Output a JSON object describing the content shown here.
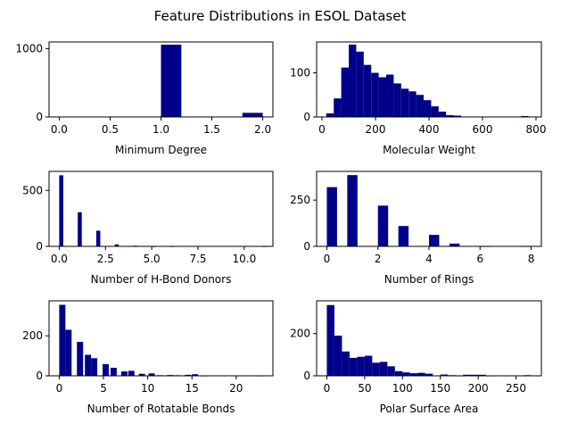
{
  "figure": {
    "title": "Feature Distributions in ESOL Dataset"
  },
  "colors": {
    "bar": "#00008b",
    "axis": "#000000"
  },
  "chart_data": [
    {
      "type": "bar",
      "subtype": "histogram",
      "xlabel": "Minimum Degree",
      "xlim": [
        -0.1,
        2.1
      ],
      "ylim": [
        0,
        1100
      ],
      "xticks": [
        0.0,
        0.5,
        1.0,
        1.5,
        2.0
      ],
      "xticklabels": [
        "0.0",
        "0.5",
        "1.0",
        "1.5",
        "2.0"
      ],
      "yticks": [
        0,
        1000
      ],
      "yticklabels": [
        "0",
        "1000"
      ],
      "bins": [
        [
          1.0,
          1.2,
          1060
        ],
        [
          1.8,
          2.0,
          60
        ]
      ]
    },
    {
      "type": "bar",
      "subtype": "histogram",
      "xlabel": "Molecular Weight",
      "xlim": [
        -20,
        820
      ],
      "ylim": [
        0,
        170
      ],
      "xticks": [
        0,
        200,
        400,
        600,
        800
      ],
      "xticklabels": [
        "0",
        "200",
        "400",
        "600",
        "800"
      ],
      "yticks": [
        0,
        100
      ],
      "yticklabels": [
        "0",
        "100"
      ],
      "bins": [
        [
          16,
          44,
          8
        ],
        [
          44,
          72,
          42
        ],
        [
          72,
          100,
          112
        ],
        [
          100,
          128,
          164
        ],
        [
          128,
          156,
          148
        ],
        [
          156,
          184,
          118
        ],
        [
          184,
          212,
          100
        ],
        [
          212,
          240,
          90
        ],
        [
          240,
          268,
          96
        ],
        [
          268,
          296,
          76
        ],
        [
          296,
          324,
          64
        ],
        [
          324,
          352,
          58
        ],
        [
          352,
          380,
          50
        ],
        [
          380,
          408,
          38
        ],
        [
          408,
          436,
          24
        ],
        [
          436,
          464,
          12
        ],
        [
          464,
          492,
          4
        ],
        [
          492,
          520,
          3
        ],
        [
          520,
          548,
          1
        ],
        [
          548,
          576,
          1
        ],
        [
          576,
          604,
          0
        ],
        [
          604,
          632,
          0
        ],
        [
          632,
          660,
          0
        ],
        [
          660,
          688,
          0
        ],
        [
          688,
          716,
          0
        ],
        [
          716,
          744,
          0
        ],
        [
          744,
          772,
          2
        ],
        [
          772,
          800,
          1
        ]
      ]
    },
    {
      "type": "bar",
      "subtype": "histogram",
      "xlabel": "Number of H-Bond Donors",
      "xlim": [
        -0.55,
        11.55
      ],
      "ylim": [
        0,
        670
      ],
      "xticks": [
        0.0,
        2.5,
        5.0,
        7.5,
        10.0
      ],
      "xticklabels": [
        "0.0",
        "2.5",
        "5.0",
        "7.5",
        "10.0"
      ],
      "yticks": [
        0,
        500
      ],
      "yticklabels": [
        "0",
        "500"
      ],
      "bins": [
        [
          0.0,
          0.22,
          635
        ],
        [
          1.0,
          1.22,
          305
        ],
        [
          2.0,
          2.22,
          140
        ],
        [
          3.0,
          3.22,
          18
        ],
        [
          4.0,
          4.22,
          6
        ],
        [
          5.0,
          5.22,
          1
        ],
        [
          6.0,
          6.22,
          1
        ],
        [
          11.0,
          11.22,
          1
        ]
      ]
    },
    {
      "type": "bar",
      "subtype": "histogram",
      "xlabel": "Number of Rings",
      "xlim": [
        -0.4,
        8.4
      ],
      "ylim": [
        0,
        405
      ],
      "xticks": [
        0,
        2,
        4,
        6,
        8
      ],
      "xticklabels": [
        "0",
        "2",
        "4",
        "6",
        "8"
      ],
      "yticks": [
        0,
        250
      ],
      "yticklabels": [
        "0",
        "250"
      ],
      "bins": [
        [
          0.0,
          0.4,
          320
        ],
        [
          0.8,
          1.2,
          385
        ],
        [
          2.0,
          2.4,
          220
        ],
        [
          2.8,
          3.2,
          110
        ],
        [
          4.0,
          4.4,
          62
        ],
        [
          4.8,
          5.2,
          15
        ],
        [
          6.0,
          6.4,
          1
        ],
        [
          7.6,
          8.0,
          1
        ]
      ]
    },
    {
      "type": "bar",
      "subtype": "histogram",
      "xlabel": "Number of Rotatable Bonds",
      "xlim": [
        -1.15,
        24.15
      ],
      "ylim": [
        0,
        375
      ],
      "xticks": [
        0,
        5,
        10,
        15,
        20
      ],
      "xticklabels": [
        "0",
        "5",
        "10",
        "15",
        "20"
      ],
      "yticks": [
        0,
        200
      ],
      "yticklabels": [
        "0",
        "200"
      ],
      "bins": [
        [
          0.0,
          0.7,
          355
        ],
        [
          0.7,
          1.4,
          230
        ],
        [
          2.0,
          2.7,
          170
        ],
        [
          2.9,
          3.6,
          105
        ],
        [
          3.6,
          4.3,
          88
        ],
        [
          4.9,
          5.6,
          58
        ],
        [
          5.8,
          6.5,
          40
        ],
        [
          7.0,
          7.7,
          22
        ],
        [
          7.8,
          8.5,
          25
        ],
        [
          9.0,
          9.7,
          10
        ],
        [
          10.1,
          10.8,
          12
        ],
        [
          11.0,
          11.7,
          3
        ],
        [
          12.2,
          12.9,
          4
        ],
        [
          13.0,
          13.7,
          3
        ],
        [
          14.2,
          14.9,
          5
        ],
        [
          15.0,
          15.7,
          8
        ],
        [
          16.0,
          16.7,
          1
        ],
        [
          22.2,
          22.9,
          1
        ]
      ]
    },
    {
      "type": "bar",
      "subtype": "histogram",
      "xlabel": "Polar Surface Area",
      "xlim": [
        -13.5,
        283.5
      ],
      "ylim": [
        0,
        355
      ],
      "xticks": [
        0,
        50,
        100,
        150,
        200,
        250
      ],
      "xticklabels": [
        "0",
        "50",
        "100",
        "150",
        "200",
        "250"
      ],
      "yticks": [
        0,
        200
      ],
      "yticklabels": [
        "0",
        "200"
      ],
      "bins": [
        [
          0,
          10,
          335
        ],
        [
          10,
          20,
          190
        ],
        [
          20,
          30,
          115
        ],
        [
          30,
          40,
          85
        ],
        [
          40,
          50,
          90
        ],
        [
          50,
          60,
          95
        ],
        [
          60,
          70,
          62
        ],
        [
          70,
          80,
          66
        ],
        [
          80,
          90,
          45
        ],
        [
          90,
          100,
          22
        ],
        [
          100,
          110,
          16
        ],
        [
          110,
          120,
          12
        ],
        [
          120,
          130,
          14
        ],
        [
          130,
          140,
          10
        ],
        [
          140,
          150,
          2
        ],
        [
          150,
          160,
          6
        ],
        [
          160,
          170,
          3
        ],
        [
          170,
          180,
          1
        ],
        [
          180,
          190,
          5
        ],
        [
          190,
          200,
          5
        ],
        [
          200,
          210,
          5
        ],
        [
          210,
          220,
          1
        ],
        [
          220,
          230,
          0
        ],
        [
          230,
          240,
          0
        ],
        [
          240,
          250,
          0
        ],
        [
          250,
          260,
          0
        ],
        [
          260,
          270,
          3
        ]
      ]
    }
  ]
}
